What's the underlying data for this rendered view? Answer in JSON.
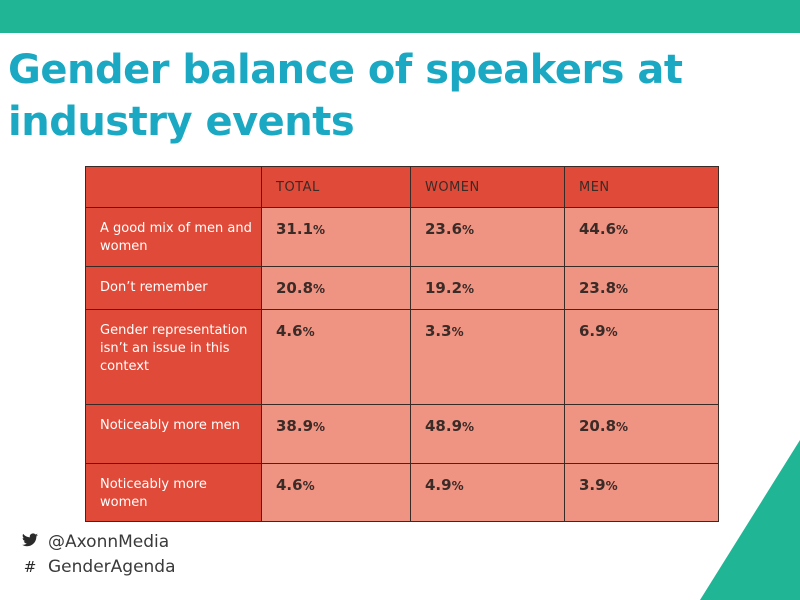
{
  "title": "Gender balance of speakers at industry events",
  "table": {
    "headers": [
      "",
      "TOTAL",
      "WOMEN",
      "MEN"
    ],
    "rows": [
      {
        "label": "A good mix of men and women",
        "values": [
          "31.1",
          "23.6",
          "44.6"
        ]
      },
      {
        "label": "Don’t remember",
        "values": [
          "20.8",
          "19.2",
          "23.8"
        ]
      },
      {
        "label": "Gender representation isn’t an issue in this context",
        "values": [
          "4.6",
          "3.3",
          "6.9"
        ]
      },
      {
        "label": "Noticeably more men",
        "values": [
          "38.9",
          "48.9",
          "20.8"
        ]
      },
      {
        "label": "Noticeably more women",
        "values": [
          "4.6",
          "4.9",
          "3.9"
        ]
      }
    ],
    "unit": "%"
  },
  "footer": {
    "twitter": "@AxonnMedia",
    "hashtag": "GenderAgenda",
    "twitter_icon": "bird-icon",
    "hashtag_icon": "hash-icon"
  },
  "colors": {
    "top_bar": "#1fb595",
    "title": "#1ba8c2",
    "header_cell": "#e04a38",
    "value_cell": "#ef9382",
    "corner": "#1fb595"
  }
}
